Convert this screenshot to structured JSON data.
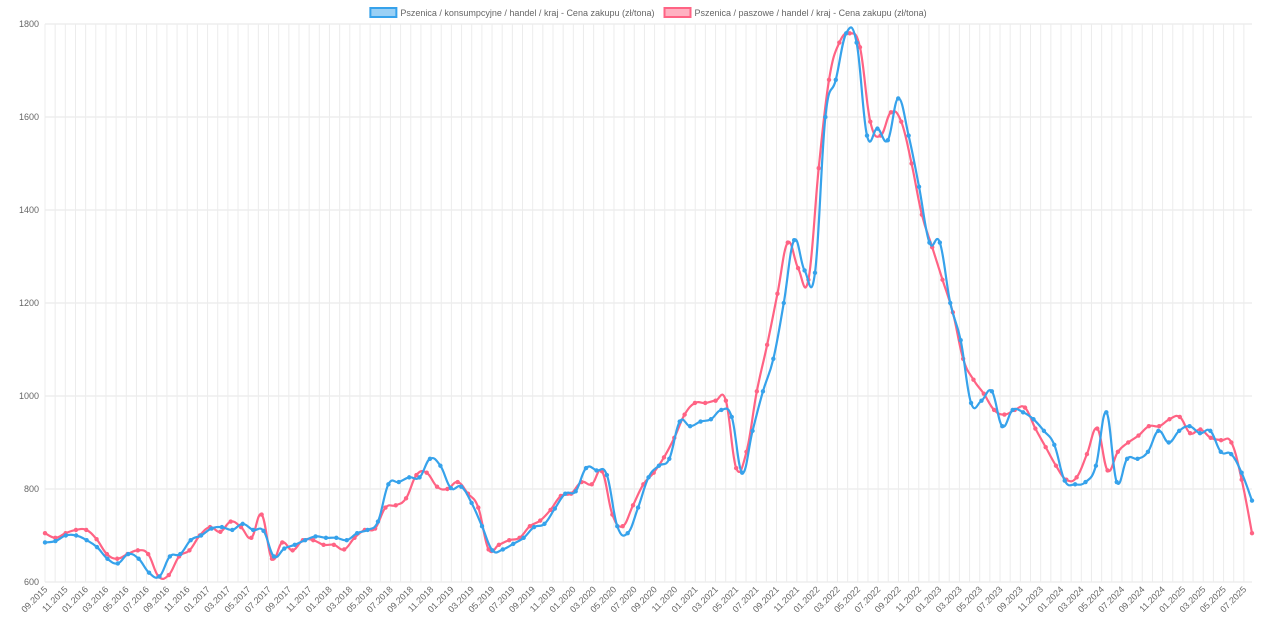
{
  "chart_data": {
    "type": "line",
    "title": "",
    "xlabel": "",
    "ylabel": "",
    "ylim": [
      600,
      1800
    ],
    "y_ticks": [
      600,
      800,
      1000,
      1200,
      1400,
      1600,
      1800
    ],
    "x_tick_labels": [
      "09.2015",
      "11.2015",
      "01.2016",
      "03.2016",
      "05.2016",
      "07.2016",
      "09.2016",
      "11.2016",
      "01.2017",
      "03.2017",
      "05.2017",
      "07.2017",
      "09.2017",
      "11.2017",
      "01.2018",
      "03.2018",
      "05.2018",
      "07.2018",
      "09.2018",
      "11.2018",
      "01.2019",
      "03.2019",
      "05.2019",
      "07.2019",
      "09.2019",
      "11.2019",
      "01.2020",
      "03.2020",
      "05.2020",
      "07.2020",
      "09.2020",
      "11.2020",
      "01.2021",
      "03.2021",
      "05.2021",
      "07.2021",
      "09.2021",
      "11.2021",
      "01.2022",
      "03.2022",
      "05.2022",
      "07.2022",
      "09.2022",
      "11.2022",
      "01.2023",
      "03.2023",
      "05.2023",
      "07.2023",
      "09.2023",
      "11.2023",
      "01.2024",
      "03.2024",
      "05.2024",
      "07.2024",
      "09.2024",
      "11.2024",
      "01.2025",
      "03.2025",
      "05.2025",
      "07.2025"
    ],
    "grid": true,
    "legend_position": "top",
    "series": [
      {
        "name": "Pszenica / konsumpcyjne / handel / kraj - Cena zakupu (zł/tona)",
        "color": "#36a2eb",
        "fill": "rgba(54,162,235,0.5)",
        "values": [
          685,
          688,
          700,
          700,
          690,
          675,
          650,
          640,
          660,
          650,
          620,
          612,
          655,
          660,
          690,
          700,
          715,
          718,
          712,
          725,
          712,
          710,
          655,
          672,
          680,
          690,
          698,
          695,
          695,
          690,
          705,
          712,
          730,
          810,
          815,
          825,
          825,
          865,
          850,
          802,
          805,
          770,
          720,
          668,
          670,
          682,
          695,
          718,
          725,
          758,
          790,
          795,
          845,
          840,
          830,
          720,
          705,
          760,
          825,
          850,
          865,
          945,
          935,
          945,
          950,
          970,
          955,
          835,
          925,
          1010,
          1080,
          1200,
          1335,
          1270,
          1265,
          1600,
          1680,
          1780,
          1760,
          1560,
          1575,
          1550,
          1640,
          1560,
          1450,
          1330,
          1330,
          1200,
          1120,
          985,
          990,
          1010,
          935,
          970,
          965,
          950,
          925,
          895,
          818,
          810,
          815,
          850,
          965,
          815,
          865,
          865,
          880,
          925,
          900,
          925,
          935,
          920,
          925,
          880,
          875,
          835,
          775
        ]
      },
      {
        "name": "Pszenica / paszowe / handel / kraj - Cena zakupu (zł/tona)",
        "color": "#ff6384",
        "fill": "rgba(255,99,132,0.5)",
        "values": [
          705,
          695,
          705,
          712,
          712,
          692,
          660,
          650,
          660,
          668,
          660,
          612,
          615,
          655,
          668,
          700,
          718,
          708,
          730,
          718,
          695,
          745,
          650,
          685,
          668,
          690,
          690,
          680,
          680,
          670,
          695,
          712,
          715,
          760,
          765,
          780,
          830,
          835,
          805,
          800,
          815,
          790,
          760,
          670,
          680,
          690,
          695,
          720,
          732,
          755,
          785,
          790,
          815,
          810,
          838,
          745,
          720,
          765,
          810,
          835,
          868,
          910,
          960,
          985,
          985,
          990,
          990,
          845,
          880,
          1010,
          1110,
          1220,
          1330,
          1275,
          1250,
          1490,
          1680,
          1760,
          1780,
          1750,
          1590,
          1560,
          1610,
          1590,
          1500,
          1390,
          1320,
          1250,
          1180,
          1080,
          1035,
          1005,
          970,
          960,
          970,
          975,
          930,
          890,
          850,
          820,
          825,
          875,
          930,
          840,
          880,
          900,
          915,
          935,
          935,
          950,
          955,
          920,
          928,
          910,
          905,
          900,
          820,
          705
        ]
      }
    ]
  }
}
